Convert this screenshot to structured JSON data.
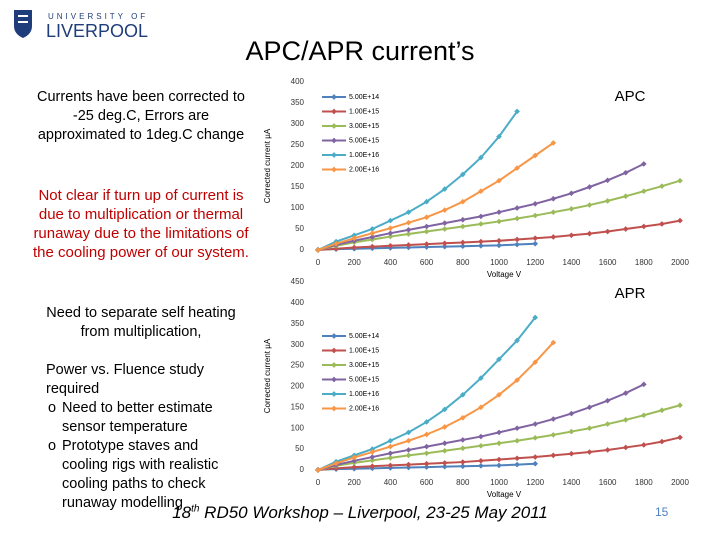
{
  "logo": {
    "line1": "UNIVERSITY OF",
    "line2": "LIVERPOOL"
  },
  "title": "APC/APR current’s",
  "notes": {
    "correction": "Currents have been corrected to -25 deg.C, Errors are approximated to 1deg.C change",
    "warning": "Not clear if turn up of current is due to multiplication or thermal runaway due to the limitations of the cooling power of our system.",
    "separate": "Need to separate self heating from multiplication,",
    "study": "Power vs. Fluence study required",
    "bullets": [
      "Need to better estimate sensor temperature",
      "Prototype staves and cooling rigs with realistic cooling paths to check runaway modelling"
    ]
  },
  "chart_data": [
    {
      "type": "line",
      "title": "APC",
      "x_label": "Voltage V",
      "y_label": "Corrected current µA",
      "xlim": [
        0,
        2000
      ],
      "xticks": [
        0,
        200,
        400,
        600,
        800,
        1000,
        1200,
        1400,
        1600,
        1800,
        2000
      ],
      "ylim": [
        0,
        400
      ],
      "yticks": [
        0,
        50,
        100,
        150,
        200,
        250,
        300,
        350,
        400
      ],
      "legend": "upper left",
      "series": [
        {
          "name": "5.00E+14",
          "color": "#4f81bd",
          "x": [
            0,
            100,
            200,
            300,
            400,
            500,
            600,
            700,
            800,
            900,
            1000,
            1100,
            1200
          ],
          "values": [
            1,
            2,
            3,
            4,
            5,
            6,
            7,
            8,
            9,
            10,
            11,
            13,
            15
          ]
        },
        {
          "name": "1.00E+15",
          "color": "#c0504d",
          "x": [
            0,
            100,
            200,
            300,
            400,
            500,
            600,
            700,
            800,
            900,
            1000,
            1100,
            1200,
            1300,
            1400,
            1500,
            1600,
            1700,
            1800,
            1900,
            2000
          ],
          "values": [
            0,
            3,
            6,
            8,
            10,
            12,
            14,
            16,
            18,
            20,
            22,
            25,
            28,
            31,
            35,
            39,
            44,
            50,
            56,
            62,
            70
          ]
        },
        {
          "name": "3.00E+15",
          "color": "#9bbb59",
          "x": [
            0,
            100,
            200,
            300,
            400,
            500,
            600,
            700,
            800,
            900,
            1000,
            1100,
            1200,
            1300,
            1400,
            1500,
            1600,
            1700,
            1800,
            1900,
            2000
          ],
          "values": [
            0,
            10,
            18,
            25,
            32,
            38,
            44,
            50,
            56,
            62,
            68,
            75,
            82,
            90,
            98,
            107,
            117,
            128,
            140,
            152,
            165
          ]
        },
        {
          "name": "5.00E+15",
          "color": "#8064a2",
          "x": [
            0,
            100,
            200,
            300,
            400,
            500,
            600,
            700,
            800,
            900,
            1000,
            1100,
            1200,
            1300,
            1400,
            1500,
            1600,
            1700,
            1800
          ],
          "values": [
            0,
            12,
            22,
            31,
            40,
            48,
            56,
            64,
            72,
            80,
            90,
            100,
            110,
            122,
            135,
            150,
            166,
            184,
            205
          ]
        },
        {
          "name": "1.00E+16",
          "color": "#4bacc6",
          "x": [
            0,
            100,
            200,
            300,
            400,
            500,
            600,
            700,
            800,
            900,
            1000,
            1100
          ],
          "values": [
            0,
            20,
            35,
            50,
            70,
            90,
            115,
            145,
            180,
            220,
            270,
            330
          ]
        },
        {
          "name": "2.00E+16",
          "color": "#f79646",
          "x": [
            0,
            100,
            200,
            300,
            400,
            500,
            600,
            700,
            800,
            900,
            1000,
            1100,
            1200,
            1300
          ],
          "values": [
            0,
            15,
            28,
            40,
            52,
            65,
            78,
            95,
            115,
            140,
            165,
            195,
            225,
            255
          ]
        }
      ]
    },
    {
      "type": "line",
      "title": "APR",
      "x_label": "Voltage V",
      "y_label": "Corrected current µA",
      "xlim": [
        0,
        2000
      ],
      "xticks": [
        0,
        200,
        400,
        600,
        800,
        1000,
        1200,
        1400,
        1600,
        1800,
        2000
      ],
      "ylim": [
        0,
        450
      ],
      "yticks": [
        0,
        50,
        100,
        150,
        200,
        250,
        300,
        350,
        400,
        450
      ],
      "legend": "upper left",
      "series": [
        {
          "name": "5.00E+14",
          "color": "#4f81bd",
          "x": [
            0,
            100,
            200,
            300,
            400,
            500,
            600,
            700,
            800,
            900,
            1000,
            1100,
            1200
          ],
          "values": [
            1,
            2,
            3,
            4,
            5,
            6,
            7,
            8,
            9,
            10,
            11,
            13,
            15
          ]
        },
        {
          "name": "1.00E+15",
          "color": "#c0504d",
          "x": [
            0,
            100,
            200,
            300,
            400,
            500,
            600,
            700,
            800,
            900,
            1000,
            1100,
            1200,
            1300,
            1400,
            1500,
            1600,
            1700,
            1800,
            1900,
            2000
          ],
          "values": [
            0,
            4,
            7,
            9,
            11,
            13,
            15,
            17,
            19,
            22,
            25,
            28,
            31,
            35,
            39,
            43,
            48,
            54,
            60,
            68,
            78
          ]
        },
        {
          "name": "3.00E+15",
          "color": "#9bbb59",
          "x": [
            0,
            100,
            200,
            300,
            400,
            500,
            600,
            700,
            800,
            900,
            1000,
            1100,
            1200,
            1300,
            1400,
            1500,
            1600,
            1700,
            1800,
            1900,
            2000
          ],
          "values": [
            0,
            10,
            17,
            23,
            29,
            35,
            40,
            46,
            52,
            58,
            64,
            70,
            77,
            84,
            92,
            100,
            110,
            120,
            131,
            143,
            155
          ]
        },
        {
          "name": "5.00E+15",
          "color": "#8064a2",
          "x": [
            0,
            100,
            200,
            300,
            400,
            500,
            600,
            700,
            800,
            900,
            1000,
            1100,
            1200,
            1300,
            1400,
            1500,
            1600,
            1700,
            1800
          ],
          "values": [
            0,
            12,
            22,
            31,
            40,
            48,
            56,
            64,
            72,
            80,
            90,
            100,
            110,
            122,
            135,
            150,
            166,
            184,
            205
          ]
        },
        {
          "name": "1.00E+16",
          "color": "#4bacc6",
          "x": [
            0,
            100,
            200,
            300,
            400,
            500,
            600,
            700,
            800,
            900,
            1000,
            1100,
            1200
          ],
          "values": [
            0,
            20,
            35,
            50,
            70,
            90,
            115,
            145,
            180,
            220,
            265,
            310,
            365
          ]
        },
        {
          "name": "2.00E+16",
          "color": "#f79646",
          "x": [
            0,
            100,
            200,
            300,
            400,
            500,
            600,
            700,
            800,
            900,
            1000,
            1100,
            1200,
            1300
          ],
          "values": [
            0,
            16,
            30,
            43,
            56,
            70,
            85,
            103,
            125,
            150,
            180,
            215,
            258,
            305
          ]
        }
      ]
    }
  ],
  "footer": {
    "num": "18",
    "sup": "th",
    "rest": " RD50 Workshop – Liverpool, 23-25 May 2011"
  },
  "page_number": "15"
}
